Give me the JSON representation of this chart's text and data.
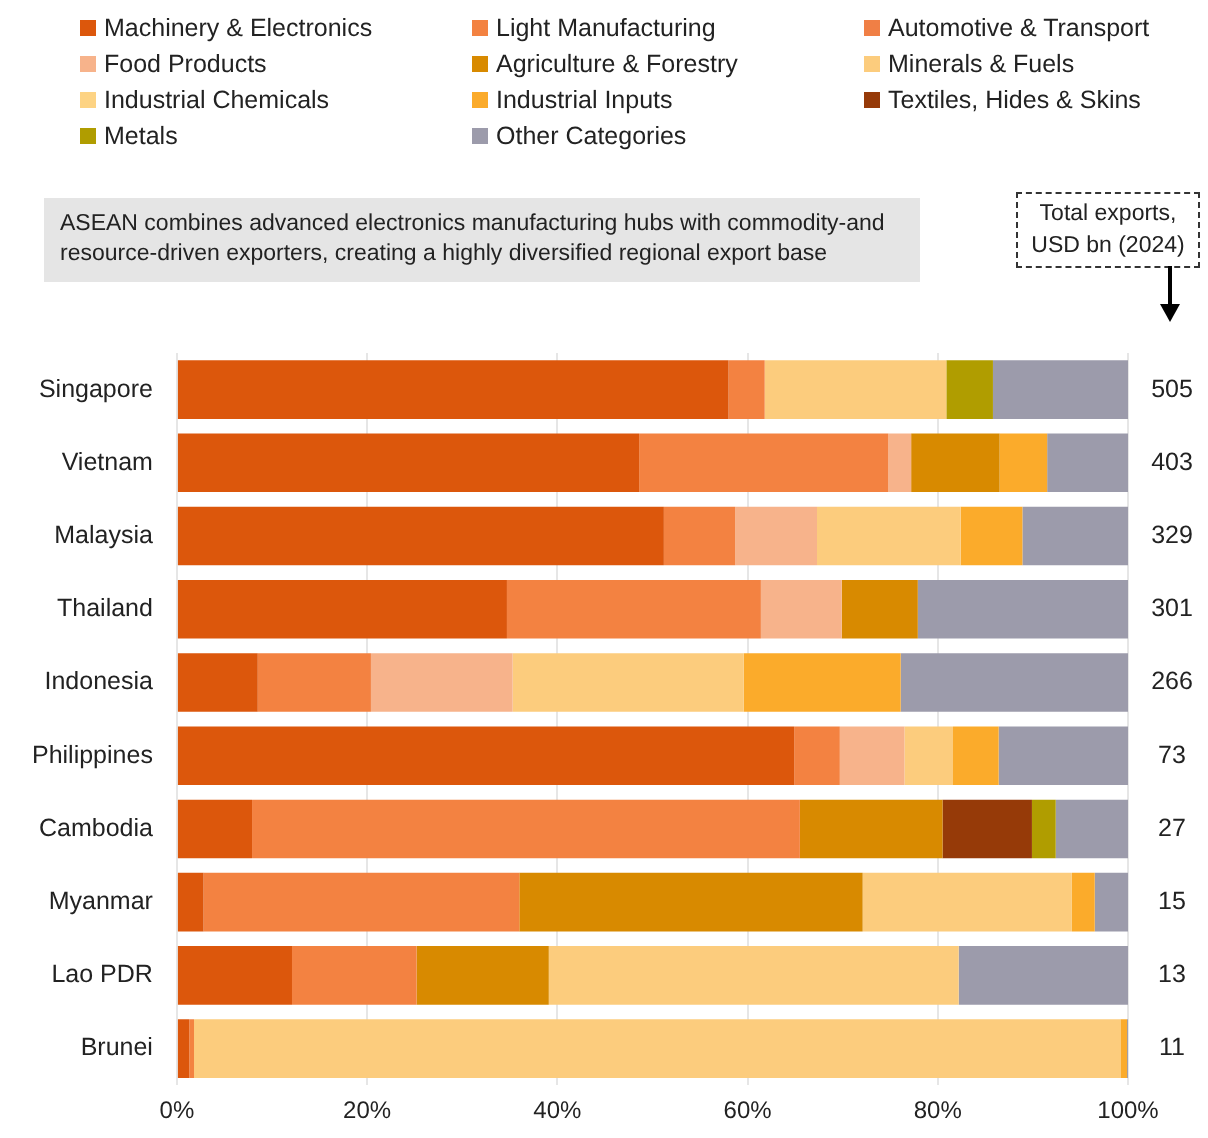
{
  "chart_data": {
    "type": "bar",
    "orientation": "horizontal",
    "stacked": true,
    "subtitle": "ASEAN combines advanced electronics manufacturing hubs with commodity-and resource-driven exporters, creating a highly diversified regional export base",
    "categories": [
      "Singapore",
      "Vietnam",
      "Malaysia",
      "Thailand",
      "Indonesia",
      "Philippines",
      "Cambodia",
      "Myanmar",
      "Lao PDR",
      "Brunei"
    ],
    "series": [
      {
        "name": "Machinery & Electronics",
        "color": "#dc570c",
        "values": [
          58.0,
          48.6,
          51.2,
          34.7,
          8.5,
          64.9,
          7.9,
          2.8,
          12.1,
          1.3
        ]
      },
      {
        "name": "Light Manufacturing",
        "color": "#f38241",
        "values": [
          3.8,
          26.2,
          7.5,
          26.7,
          11.9,
          4.8,
          57.6,
          33.2,
          13.1,
          0.5
        ]
      },
      {
        "name": "Automotive & Transport",
        "color": "#f07f45",
        "values": [
          null,
          null,
          null,
          null,
          null,
          null,
          null,
          null,
          null,
          null
        ]
      },
      {
        "name": "Food Products",
        "color": "#f7b38b",
        "values": [
          null,
          2.4,
          8.6,
          8.5,
          14.9,
          6.8,
          null,
          null,
          null,
          null
        ]
      },
      {
        "name": "Agriculture & Forestry",
        "color": "#d88a00",
        "values": [
          null,
          9.3,
          null,
          8.0,
          null,
          null,
          15.0,
          36.1,
          13.9,
          null
        ]
      },
      {
        "name": "Minerals & Fuels",
        "color": "#fccc7d",
        "values": [
          19.1,
          null,
          15.1,
          null,
          24.3,
          5.1,
          null,
          22.0,
          43.1,
          97.4
        ]
      },
      {
        "name": "Industrial Chemicals",
        "color": "#fdd383",
        "values": [
          null,
          null,
          null,
          null,
          null,
          null,
          null,
          null,
          null,
          null
        ]
      },
      {
        "name": "Industrial Inputs",
        "color": "#fbab2b",
        "values": [
          null,
          5.0,
          6.5,
          null,
          16.5,
          4.8,
          null,
          2.4,
          null,
          0.7
        ]
      },
      {
        "name": "Textiles, Hides & Skins",
        "color": "#963a08",
        "values": [
          null,
          null,
          null,
          null,
          null,
          null,
          9.4,
          null,
          null,
          null
        ]
      },
      {
        "name": "Metals",
        "color": "#b09d00",
        "values": [
          4.9,
          null,
          null,
          null,
          null,
          null,
          2.5,
          null,
          null,
          null
        ]
      },
      {
        "name": "Other Categories",
        "color": "#9c9bab",
        "values": [
          14.2,
          8.5,
          11.1,
          22.1,
          23.9,
          13.6,
          7.6,
          3.5,
          17.8,
          0.1
        ]
      }
    ],
    "xlim": [
      0,
      100
    ],
    "xticks": [
      {
        "value": 0,
        "label": "0%"
      },
      {
        "value": 20,
        "label": "20%"
      },
      {
        "value": 40,
        "label": "40%"
      },
      {
        "value": 60,
        "label": "60%"
      },
      {
        "value": 80,
        "label": "80%"
      },
      {
        "value": 100,
        "label": "100%"
      }
    ],
    "grid": "x",
    "legend": "top",
    "annotations": [
      "Total exports, USD bn (2024)",
      "505",
      "403",
      "329",
      "301",
      "266",
      "73",
      "27",
      "15",
      "13",
      "11"
    ]
  }
}
